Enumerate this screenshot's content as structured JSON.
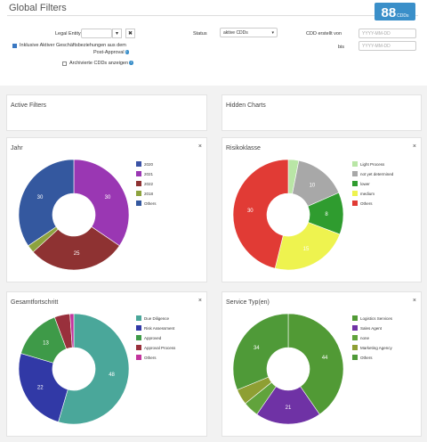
{
  "filters": {
    "title": "Global Filters",
    "count": "88",
    "count_label": "CDDs",
    "legal_entity_label": "Legal Entity",
    "status_label": "Status",
    "status_value": "aktive CDDs",
    "created_from_label": "CDD erstellt von",
    "created_to_label": "bis",
    "date_placeholder": "YYYY-MM-DD",
    "include_active_line1": "Inklusive Aktiver Geschäftsbeziehungen aus dem",
    "include_active_line2": "Post-Approval",
    "show_archived": "Archivierte CDDs anzeigen",
    "include_active_checked": true,
    "show_archived_checked": false
  },
  "panels": {
    "active_filters": "Active Filters",
    "hidden_charts": "Hidden Charts"
  },
  "close_glyph": "×",
  "chart_data": [
    {
      "type": "pie",
      "title": "Jahr",
      "donut": true,
      "categories": [
        "2020",
        "2021",
        "2022",
        "2018",
        "Others"
      ],
      "values": [
        0,
        30,
        25,
        2,
        30
      ],
      "colors": [
        "#3a52a5",
        "#9a37b3",
        "#8e3232",
        "#8da33e",
        "#34589f"
      ],
      "slice_labels": [
        "",
        "30",
        "25",
        "",
        "30"
      ],
      "legend": "right"
    },
    {
      "type": "pie",
      "title": "Risikoklasse",
      "donut": true,
      "categories": [
        "Light Process",
        "not yet determined",
        "lower",
        "medium",
        "Others"
      ],
      "values": [
        2,
        10,
        8,
        15,
        30
      ],
      "colors": [
        "#b9e6a6",
        "#a8a8a8",
        "#2f9c2f",
        "#eef34f",
        "#e13b35"
      ],
      "slice_labels": [
        "",
        "10",
        "8",
        "15",
        "30"
      ],
      "legend": "right"
    },
    {
      "type": "pie",
      "title": "Gesamtfortschritt",
      "donut": true,
      "categories": [
        "Due Diligence",
        "Risk Assessment",
        "Approved",
        "Approval Process",
        "Others"
      ],
      "values": [
        48,
        22,
        13,
        4,
        1
      ],
      "colors": [
        "#4aa79a",
        "#3139a6",
        "#3e9a48",
        "#99303c",
        "#c3349e"
      ],
      "slice_labels": [
        "48",
        "22",
        "13",
        "",
        ""
      ],
      "legend": "right"
    },
    {
      "type": "pie",
      "title": "Service Typ(en)",
      "donut": true,
      "categories": [
        "Logistics Services",
        "Sales Agent",
        "none",
        "Marketing Agency",
        "Others"
      ],
      "values": [
        44,
        21,
        5,
        5,
        34
      ],
      "colors": [
        "#519a35",
        "#6f32a5",
        "#61a33c",
        "#8e9f33",
        "#4f9a38"
      ],
      "slice_labels": [
        "44",
        "21",
        "",
        "",
        "34"
      ],
      "legend": "right"
    }
  ]
}
